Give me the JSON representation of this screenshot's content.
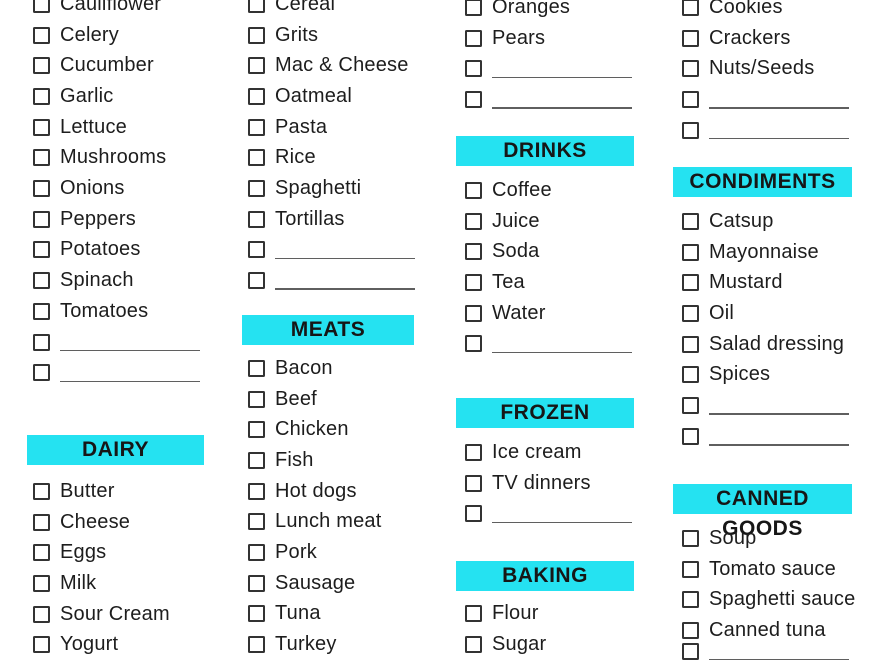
{
  "page": {
    "background": "#ffffff",
    "accent_color": "#25E2F1",
    "text_color": "#1d1d1d"
  },
  "columns": [
    {
      "sections": [
        {
          "header": "",
          "items": [
            "Cauliflower",
            "Celery",
            "Cucumber",
            "Garlic",
            "Lettuce",
            "Mushrooms",
            "Onions",
            "Peppers",
            "Potatoes",
            "Spinach",
            "Tomatoes",
            "",
            ""
          ]
        },
        {
          "header": "DAIRY",
          "items": [
            "Butter",
            "Cheese",
            "Eggs",
            "Milk",
            "Sour Cream",
            "Yogurt"
          ]
        }
      ]
    },
    {
      "sections": [
        {
          "header": "",
          "items": [
            "Cereal",
            "Grits",
            "Mac & Cheese",
            "Oatmeal",
            "Pasta",
            "Rice",
            "Spaghetti",
            "Tortillas",
            "",
            ""
          ]
        },
        {
          "header": "MEATS",
          "items": [
            "Bacon",
            "Beef",
            "Chicken",
            "Fish",
            "Hot dogs",
            "Lunch meat",
            "Pork",
            "Sausage",
            "Tuna",
            "Turkey"
          ]
        }
      ]
    },
    {
      "sections": [
        {
          "header": "",
          "items": [
            "Oranges",
            "Pears",
            "",
            ""
          ]
        },
        {
          "header": "DRINKS",
          "items": [
            "Coffee",
            "Juice",
            "Soda",
            "Tea",
            "Water",
            ""
          ]
        },
        {
          "header": "FROZEN",
          "items": [
            "Ice cream",
            "TV dinners",
            ""
          ]
        },
        {
          "header": "BAKING",
          "items": [
            "Flour",
            "Sugar"
          ]
        }
      ]
    },
    {
      "sections": [
        {
          "header": "",
          "items": [
            "Cookies",
            "Crackers",
            "Nuts/Seeds",
            "",
            ""
          ]
        },
        {
          "header": "CONDIMENTS",
          "items": [
            "Catsup",
            "Mayonnaise",
            "Mustard",
            "Oil",
            "Salad dressing",
            "Spices",
            "",
            ""
          ]
        },
        {
          "header": "CANNED GOODS",
          "items": [
            "Soup",
            "Tomato sauce",
            "Spaghetti sauce",
            "Canned tuna",
            ""
          ]
        }
      ]
    }
  ]
}
